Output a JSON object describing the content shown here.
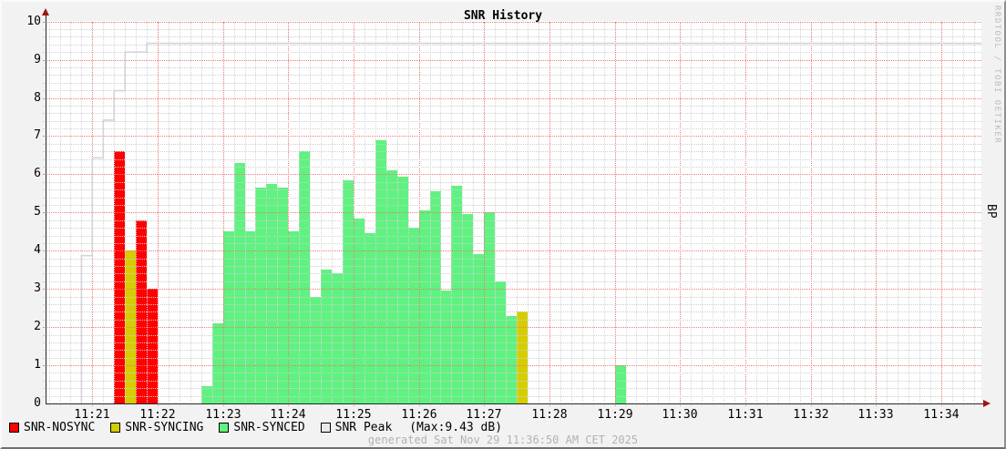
{
  "header": {
    "title": "SNR History"
  },
  "watermark": "RRDTOOL / TOBI OETIKER",
  "right_axis_label": "BP",
  "footer": {
    "generated": "generated Sat Nov 29 11:36:50 AM CET 2025"
  },
  "legend": {
    "items": [
      {
        "label": "SNR-NOSYNC",
        "color": "#FF0000"
      },
      {
        "label": "SNR-SYNCING",
        "color": "#D6CD00"
      },
      {
        "label": "SNR-SYNCED",
        "color": "#5FF280"
      },
      {
        "label": "SNR Peak",
        "color": "#E9E9E9"
      }
    ],
    "max_note": "(Max:9.43 dB)"
  },
  "chart_data": {
    "type": "bar",
    "title": "SNR History",
    "xlabel": "",
    "ylabel": "",
    "right_label": "BP",
    "ylim": [
      0,
      10
    ],
    "y_tick_step": 1,
    "x_range": [
      "11:20:17",
      "11:34:37"
    ],
    "x_ticks": [
      "11:21",
      "11:22",
      "11:23",
      "11:24",
      "11:25",
      "11:26",
      "11:27",
      "11:28",
      "11:29",
      "11:30",
      "11:31",
      "11:32",
      "11:33",
      "11:34"
    ],
    "bar_width_seconds": 10,
    "grid": {
      "x_minor_seconds": 10,
      "y_minor": 0.2,
      "on": true
    },
    "legend_position": "bottom-left",
    "peak_max_db": 9.43,
    "series": [
      {
        "name": "SNR-NOSYNC",
        "kind": "bar",
        "color": "#FF0000",
        "points": [
          {
            "t": "11:21:20",
            "v": 6.6
          },
          {
            "t": "11:21:40",
            "v": 4.8
          },
          {
            "t": "11:21:50",
            "v": 3.0
          }
        ]
      },
      {
        "name": "SNR-SYNCING",
        "kind": "bar",
        "color": "#D6CD00",
        "points": [
          {
            "t": "11:21:30",
            "v": 4.0
          },
          {
            "t": "11:27:30",
            "v": 2.4
          }
        ]
      },
      {
        "name": "SNR-SYNCED",
        "kind": "bar",
        "color": "#5FF280",
        "points": [
          {
            "t": "11:22:40",
            "v": 0.45
          },
          {
            "t": "11:22:50",
            "v": 2.1
          },
          {
            "t": "11:23:00",
            "v": 4.5
          },
          {
            "t": "11:23:10",
            "v": 6.3
          },
          {
            "t": "11:23:20",
            "v": 4.5
          },
          {
            "t": "11:23:30",
            "v": 5.65
          },
          {
            "t": "11:23:40",
            "v": 5.75
          },
          {
            "t": "11:23:50",
            "v": 5.65
          },
          {
            "t": "11:24:00",
            "v": 4.5
          },
          {
            "t": "11:24:10",
            "v": 6.6
          },
          {
            "t": "11:24:20",
            "v": 2.8
          },
          {
            "t": "11:24:30",
            "v": 3.5
          },
          {
            "t": "11:24:40",
            "v": 3.4
          },
          {
            "t": "11:24:50",
            "v": 5.85
          },
          {
            "t": "11:25:00",
            "v": 4.85
          },
          {
            "t": "11:25:10",
            "v": 4.45
          },
          {
            "t": "11:25:20",
            "v": 6.9
          },
          {
            "t": "11:25:30",
            "v": 6.1
          },
          {
            "t": "11:25:40",
            "v": 5.95
          },
          {
            "t": "11:25:50",
            "v": 4.6
          },
          {
            "t": "11:26:00",
            "v": 5.05
          },
          {
            "t": "11:26:10",
            "v": 5.55
          },
          {
            "t": "11:26:20",
            "v": 2.95
          },
          {
            "t": "11:26:30",
            "v": 5.7
          },
          {
            "t": "11:26:40",
            "v": 4.95
          },
          {
            "t": "11:26:50",
            "v": 3.9
          },
          {
            "t": "11:27:00",
            "v": 5.0
          },
          {
            "t": "11:27:10",
            "v": 3.2
          },
          {
            "t": "11:27:20",
            "v": 2.3
          },
          {
            "t": "11:29:00",
            "v": 1.0
          }
        ]
      },
      {
        "name": "SNR Peak",
        "kind": "step-line",
        "color": "#D4D4D4",
        "points": [
          {
            "t": "11:20:50",
            "v": 3.87
          },
          {
            "t": "11:21:00",
            "v": 6.43
          },
          {
            "t": "11:21:10",
            "v": 7.42
          },
          {
            "t": "11:21:20",
            "v": 8.19
          },
          {
            "t": "11:21:30",
            "v": 9.2
          },
          {
            "t": "11:21:50",
            "v": 9.43
          },
          {
            "t": "11:34:37",
            "v": 9.43
          }
        ]
      }
    ]
  }
}
